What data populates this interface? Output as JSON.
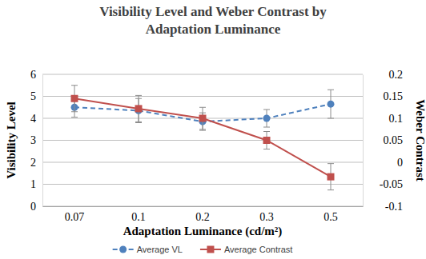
{
  "chart_data": {
    "type": "line",
    "title": "Visibility Level and Weber Contrast by Adaptation Luminance",
    "x_label": "Adaptation Luminance (cd/m²)",
    "y_label": "Visibility Level",
    "y2_label": "Weber Contrast",
    "categories": [
      "0.07",
      "0.1",
      "0.2",
      "0.3",
      "0.5"
    ],
    "series": [
      {
        "name": "Average VL",
        "color": "#4f81bd",
        "marker": "circle",
        "line_style": "dashed",
        "values": [
          4.5,
          4.35,
          3.85,
          4.0,
          4.65
        ],
        "errors": [
          0.45,
          0.55,
          0.4,
          0.4,
          0.65
        ]
      },
      {
        "name": "Average Contrast",
        "color": "#c0504d",
        "marker": "square",
        "line_style": "solid",
        "axis": "y2",
        "values": [
          0.145,
          0.122,
          0.1,
          0.05,
          -0.033
        ],
        "errors": [
          0.03,
          0.03,
          0.025,
          0.02,
          0.03
        ]
      }
    ],
    "ylim": [
      0,
      6
    ],
    "yticks": [
      0,
      1,
      2,
      3,
      4,
      5,
      6
    ],
    "y2lim": [
      -0.1,
      0.2
    ],
    "y2ticks": [
      -0.1,
      -0.05,
      0,
      0.05,
      0.1,
      0.15,
      0.2
    ],
    "grid": true,
    "legend": "bottom"
  }
}
